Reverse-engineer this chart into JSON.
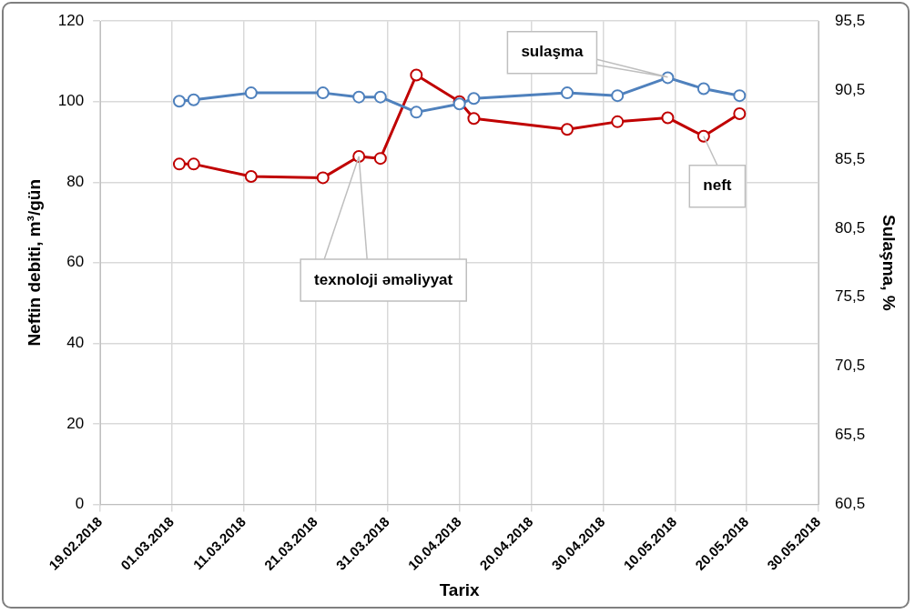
{
  "chart_data": {
    "type": "line",
    "xlabel": "Tarix",
    "ylabel": "Neftin debiti, m³/gün",
    "y2label": "Sulaşma, %",
    "x": [
      "2018-03-02",
      "2018-03-04",
      "2018-03-12",
      "2018-03-22",
      "2018-03-27",
      "2018-03-30",
      "2018-04-04",
      "2018-04-10",
      "2018-04-12",
      "2018-04-25",
      "2018-05-02",
      "2018-05-09",
      "2018-05-14",
      "2018-05-19"
    ],
    "series": [
      {
        "color": "#4f81bd",
        "axis": "y2",
        "values": [
          89.7,
          89.8,
          90.3,
          90.3,
          90.0,
          90.0,
          88.9,
          89.5,
          89.9,
          90.3,
          90.1,
          91.4,
          90.6,
          90.1
        ]
      },
      {
        "color": "#c00000",
        "values": [
          84.5,
          84.5,
          81.4,
          81.1,
          86.4,
          85.9,
          106.6,
          100.0,
          95.8,
          93.1,
          95.0,
          96.0,
          91.4,
          97.0
        ]
      }
    ],
    "xlim": [
      "2018-02-19",
      "2018-05-30"
    ],
    "xticks": [
      {
        "value": "2018-02-19",
        "label": "19.02.2018"
      },
      {
        "value": "2018-03-01",
        "label": "01.03.2018"
      },
      {
        "value": "2018-03-11",
        "label": "11.03.2018"
      },
      {
        "value": "2018-03-21",
        "label": "21.03.2018"
      },
      {
        "value": "2018-03-31",
        "label": "31.03.2018"
      },
      {
        "value": "2018-04-10",
        "label": "10.04.2018"
      },
      {
        "value": "2018-04-20",
        "label": "20.04.2018"
      },
      {
        "value": "2018-04-30",
        "label": "30.04.2018"
      },
      {
        "value": "2018-05-10",
        "label": "10.05.2018"
      },
      {
        "value": "2018-05-20",
        "label": "20.05.2018"
      },
      {
        "value": "2018-05-30",
        "label": "30.05.2018"
      }
    ],
    "ylim": [
      0,
      120
    ],
    "yticks": [
      0,
      20,
      40,
      60,
      80,
      100,
      120
    ],
    "y2lim": [
      60.5,
      95.5
    ],
    "y2ticks": [
      {
        "value": 60.5,
        "label": "60,5"
      },
      {
        "value": 65.5,
        "label": "65,5"
      },
      {
        "value": 70.5,
        "label": "70,5"
      },
      {
        "value": 75.5,
        "label": "75,5"
      },
      {
        "value": 80.5,
        "label": "80,5"
      },
      {
        "value": 85.5,
        "label": "85,5"
      },
      {
        "value": 90.5,
        "label": "90,5"
      },
      {
        "value": 95.5,
        "label": "95,5"
      }
    ],
    "annotations": [
      {
        "text": "sulaşma",
        "x": "2018-05-09",
        "y": 106.1
      },
      {
        "text": "neft",
        "x": "2018-05-14",
        "y": 91.4
      },
      {
        "text": "texnoloji əməliyyat",
        "x": "2018-03-27",
        "y": 86.4
      }
    ],
    "grid": true,
    "legend": false,
    "marker": "circle",
    "line_style": "solid"
  }
}
